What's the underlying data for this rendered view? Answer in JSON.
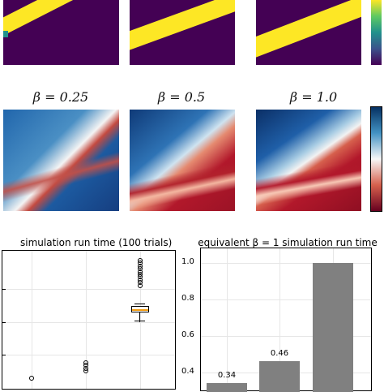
{
  "colors": {
    "viridis_low": "#440154",
    "viridis_high": "#fde725",
    "rdbu_blue": "#2166ac",
    "rdbu_red": "#b2182b",
    "bar": "#808080",
    "median": "#f39c12"
  },
  "heatmaps": {
    "titles": [
      "β = 0.25",
      "β = 0.5",
      "β = 1.0"
    ]
  },
  "chart_data": [
    {
      "type": "heatmap",
      "colormap": "viridis",
      "panels": 3,
      "note_title": ""
    },
    {
      "type": "heatmap",
      "colormap": "RdBu",
      "titles": [
        "β = 0.25",
        "β = 0.5",
        "β = 1.0"
      ]
    },
    {
      "type": "box",
      "title": "simulation run time (100 trials)",
      "xlabel": "",
      "ylabel": "",
      "boxes": [
        {
          "outliers": [
            0.05
          ]
        },
        {
          "outliers": [
            0.1,
            0.12,
            0.14,
            0.16
          ]
        },
        {
          "q1": 0.66,
          "median": 0.67,
          "q3": 0.685,
          "whisker_low": 0.62,
          "whisker_high": 0.7,
          "outliers": [
            0.72,
            0.74,
            0.76,
            0.78,
            0.8,
            0.82,
            0.84,
            0.86,
            0.88,
            0.9
          ]
        }
      ],
      "grid": true
    },
    {
      "type": "bar",
      "title": "equivalent β = 1 simulation run time",
      "values": [
        0.34,
        0.46,
        1.0
      ],
      "data_labels": [
        "0.34",
        "0.46",
        ""
      ],
      "ylim": [
        0.3,
        1.08
      ],
      "yticks": [
        "1.0",
        "0.8",
        "0.6",
        "0.4"
      ],
      "grid": true
    }
  ]
}
